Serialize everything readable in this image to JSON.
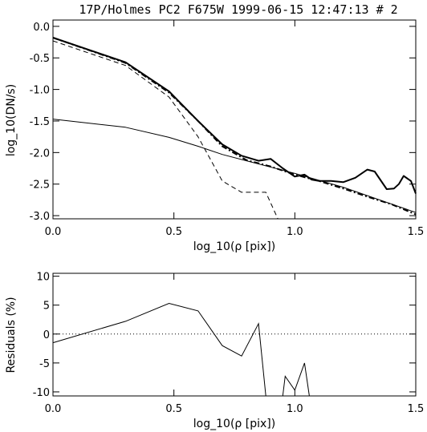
{
  "chart_data": [
    {
      "type": "line",
      "title": "17P/Holmes PC2 F675W 1999-06-15 12:47:13 # 2",
      "xlabel": "log_10(ρ [pix])",
      "ylabel": "log_10(DN/s)",
      "xlim": [
        0.0,
        1.5
      ],
      "ylim": [
        -3.05,
        0.1
      ],
      "xticks": [
        "0.0",
        "0.5",
        "1.0",
        "1.5"
      ],
      "yticks": [
        "0.0",
        "-0.5",
        "-1.0",
        "-1.5",
        "-2.0",
        "-2.5",
        "-3.0"
      ],
      "xtick_values": [
        0.0,
        0.5,
        1.0,
        1.5
      ],
      "ytick_values": [
        0.0,
        -0.5,
        -1.0,
        -1.5,
        -2.0,
        -2.5,
        -3.0
      ],
      "series": [
        {
          "style": "thick-solid",
          "x": [
            0.0,
            0.3,
            0.48,
            0.6,
            0.7,
            0.78,
            0.85,
            0.9,
            0.95,
            1.0,
            1.04,
            1.07,
            1.1,
            1.15,
            1.2,
            1.25,
            1.3,
            1.33,
            1.38,
            1.41,
            1.43,
            1.45,
            1.48,
            1.5
          ],
          "y": [
            -0.18,
            -0.57,
            -1.03,
            -1.5,
            -1.87,
            -2.05,
            -2.13,
            -2.1,
            -2.25,
            -2.38,
            -2.35,
            -2.43,
            -2.45,
            -2.45,
            -2.47,
            -2.4,
            -2.27,
            -2.3,
            -2.58,
            -2.57,
            -2.5,
            -2.37,
            -2.45,
            -2.65
          ]
        },
        {
          "style": "dash-dot",
          "x": [
            0.0,
            0.3,
            0.48,
            0.6,
            0.7,
            0.8,
            0.9,
            1.0,
            1.1,
            1.2,
            1.3,
            1.4,
            1.5
          ],
          "y": [
            -0.18,
            -0.58,
            -1.05,
            -1.5,
            -1.9,
            -2.12,
            -2.22,
            -2.35,
            -2.45,
            -2.57,
            -2.7,
            -2.82,
            -2.98
          ]
        },
        {
          "style": "dashed",
          "x": [
            0.0,
            0.3,
            0.48,
            0.6,
            0.7,
            0.78,
            0.82,
            0.88,
            0.93
          ],
          "y": [
            -0.23,
            -0.62,
            -1.12,
            -1.75,
            -2.45,
            -2.63,
            -2.63,
            -2.63,
            -3.05
          ]
        },
        {
          "style": "thin-solid",
          "x": [
            0.0,
            0.3,
            0.48,
            0.6,
            0.7,
            0.8,
            1.0,
            1.2,
            1.5
          ],
          "y": [
            -1.47,
            -1.6,
            -1.76,
            -1.9,
            -2.03,
            -2.13,
            -2.33,
            -2.55,
            -2.95
          ]
        }
      ]
    },
    {
      "type": "line",
      "xlabel": "log_10(ρ [pix])",
      "ylabel": "Residuals (%)",
      "xlim": [
        0.0,
        1.5
      ],
      "ylim": [
        -10.7,
        10.5
      ],
      "xticks": [
        "0.0",
        "0.5",
        "1.0",
        "1.5"
      ],
      "yticks": [
        "10",
        "5",
        "0",
        "-5",
        "-10"
      ],
      "xtick_values": [
        0.0,
        0.5,
        1.0,
        1.5
      ],
      "ytick_values": [
        10,
        5,
        0,
        -5,
        -10
      ],
      "reference_line": 0,
      "segments": [
        {
          "x": [
            0.0,
            0.3,
            0.48,
            0.6,
            0.7,
            0.78,
            0.85,
            0.88
          ],
          "y": [
            -1.5,
            2.2,
            5.3,
            4.0,
            -2.0,
            -3.8,
            1.8,
            -10.7
          ]
        },
        {
          "x": [
            0.95,
            0.96,
            1.0,
            1.04,
            1.06
          ],
          "y": [
            -10.7,
            -7.3,
            -9.7,
            -5.0,
            -10.7
          ]
        }
      ]
    }
  ]
}
